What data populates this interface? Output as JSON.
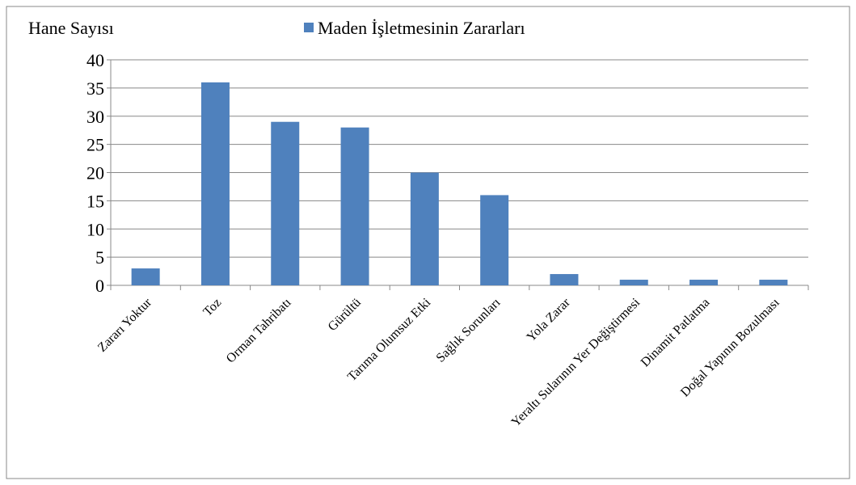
{
  "chart_data": {
    "type": "bar",
    "ylabel": "Hane Sayısı",
    "categories": [
      "Zararı Yoktur",
      "Toz",
      "Orman Tahribatı",
      "Gürültü",
      "Tarıma Olumsuz Etki",
      "Sağlık Sorunları",
      "Yola Zarar",
      "Yeraltı Sularının Yer Değiştirmesi",
      "Dinamit Patlatma",
      "Doğal Yapının Bozulması"
    ],
    "series": [
      {
        "name": "Maden İşletmesinin Zararları",
        "color": "#4f81bd",
        "values": [
          3,
          36,
          29,
          28,
          20,
          16,
          2,
          1,
          1,
          1
        ]
      }
    ],
    "ylim": [
      0,
      40
    ],
    "yticks": [
      0,
      5,
      10,
      15,
      20,
      25,
      30,
      35,
      40
    ],
    "grid": true,
    "legend": "top"
  }
}
